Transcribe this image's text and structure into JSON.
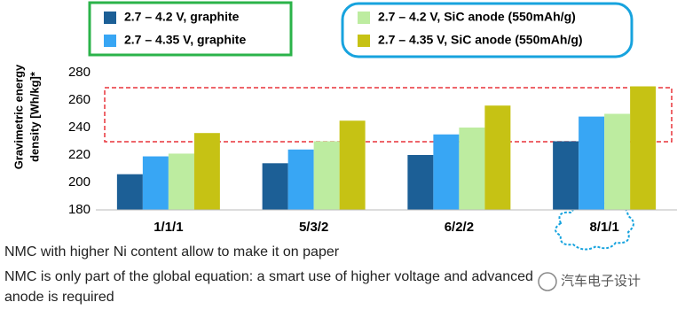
{
  "chart_data": {
    "type": "bar",
    "y_label": [
      "Gravimetric energy",
      "density [Wh/kg]*"
    ],
    "categories": [
      "1/1/1",
      "5/3/2",
      "6/2/2",
      "8/1/1"
    ],
    "series": [
      {
        "name": "2.7 – 4.2 V, graphite",
        "color": "#1c5f96",
        "values": [
          206,
          214,
          220,
          230
        ]
      },
      {
        "name": "2.7 – 4.35 V, graphite",
        "color": "#38a6f4",
        "values": [
          219,
          224,
          235,
          248
        ]
      },
      {
        "name": "2.7 – 4.2 V, SiC anode (550mAh/g)",
        "color": "#bdeca0",
        "values": [
          221,
          230,
          240,
          250
        ]
      },
      {
        "name": "2.7 – 4.35 V, SiC anode (550mAh/g)",
        "color": "#c6c214",
        "values": [
          236,
          245,
          256,
          270
        ]
      }
    ],
    "ylim": [
      180,
      280
    ],
    "yticks": [
      180,
      200,
      220,
      240,
      260,
      280
    ],
    "grid": false,
    "annotations": [
      "NMC with higher Ni content allow to make it on paper",
      "NMC is only part of the global equation: a smart use of higher voltage and advanced",
      "anode is required"
    ],
    "watermark": "汽车电子设计"
  }
}
